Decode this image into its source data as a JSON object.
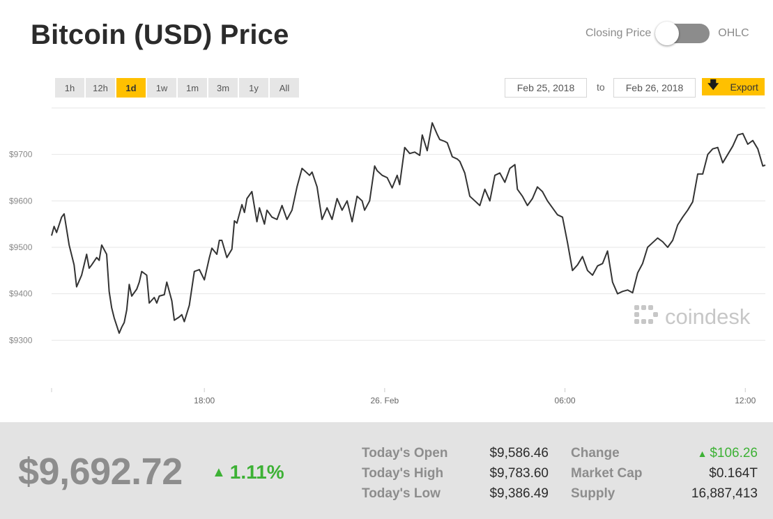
{
  "title": "Bitcoin (USD) Price",
  "toggle": {
    "left_label": "Closing Price",
    "right_label": "OHLC"
  },
  "ranges": [
    "1h",
    "12h",
    "1d",
    "1w",
    "1m",
    "3m",
    "1y",
    "All"
  ],
  "active_range": "1d",
  "date_from": "Feb 25, 2018",
  "date_to_word": "to",
  "date_to": "Feb 26, 2018",
  "export_label": "Export",
  "watermark": "coindesk",
  "colors": {
    "accent": "#ffc000",
    "positive": "#3db135",
    "line": "#333333"
  },
  "chart_data": {
    "type": "line",
    "y_tick_labels": [
      "$9300",
      "$9400",
      "$9500",
      "$9600",
      "$9700"
    ],
    "y_ticks": [
      9300,
      9400,
      9500,
      9600,
      9700
    ],
    "ylim": [
      9200,
      9800
    ],
    "x_tick_labels": [
      "18:00",
      "26. Feb",
      "06:00",
      "12:00"
    ],
    "x_ticks": [
      "2018-02-25 18:00",
      "2018-02-26 00:00",
      "2018-02-26 06:00",
      "2018-02-26 12:00"
    ],
    "xlim": [
      "2018-02-25 12:55",
      "2018-02-26 12:40"
    ],
    "grid": true,
    "series": [
      {
        "x": [
          "2018-02-25 12:55",
          "2018-02-25 13:00",
          "2018-02-25 13:05",
          "2018-02-25 13:15",
          "2018-02-25 13:20",
          "2018-02-25 13:30",
          "2018-02-25 13:40",
          "2018-02-25 13:45",
          "2018-02-25 13:55",
          "2018-02-25 14:05",
          "2018-02-25 14:10",
          "2018-02-25 14:15",
          "2018-02-25 14:25",
          "2018-02-25 14:30",
          "2018-02-25 14:35",
          "2018-02-25 14:45",
          "2018-02-25 14:50",
          "2018-02-25 14:55",
          "2018-02-25 15:00",
          "2018-02-25 15:10",
          "2018-02-25 15:15",
          "2018-02-25 15:20",
          "2018-02-25 15:25",
          "2018-02-25 15:30",
          "2018-02-25 15:35",
          "2018-02-25 15:45",
          "2018-02-25 15:50",
          "2018-02-25 15:55",
          "2018-02-25 16:05",
          "2018-02-25 16:10",
          "2018-02-25 16:20",
          "2018-02-25 16:25",
          "2018-02-25 16:30",
          "2018-02-25 16:40",
          "2018-02-25 16:45",
          "2018-02-25 16:55",
          "2018-02-25 17:00",
          "2018-02-25 17:10",
          "2018-02-25 17:15",
          "2018-02-25 17:20",
          "2018-02-25 17:30",
          "2018-02-25 17:40",
          "2018-02-25 17:50",
          "2018-02-25 18:00",
          "2018-02-25 18:10",
          "2018-02-25 18:15",
          "2018-02-25 18:25",
          "2018-02-25 18:30",
          "2018-02-25 18:35",
          "2018-02-25 18:45",
          "2018-02-25 18:55",
          "2018-02-25 19:00",
          "2018-02-25 19:05",
          "2018-02-25 19:15",
          "2018-02-25 19:20",
          "2018-02-25 19:25",
          "2018-02-25 19:35",
          "2018-02-25 19:45",
          "2018-02-25 19:50",
          "2018-02-25 20:00",
          "2018-02-25 20:05",
          "2018-02-25 20:15",
          "2018-02-25 20:25",
          "2018-02-25 20:35",
          "2018-02-25 20:45",
          "2018-02-25 20:55",
          "2018-02-25 21:05",
          "2018-02-25 21:15",
          "2018-02-25 21:25",
          "2018-02-25 21:30",
          "2018-02-25 21:35",
          "2018-02-25 21:45",
          "2018-02-25 21:55",
          "2018-02-25 22:05",
          "2018-02-25 22:15",
          "2018-02-25 22:25",
          "2018-02-25 22:35",
          "2018-02-25 22:45",
          "2018-02-25 22:55",
          "2018-02-25 23:05",
          "2018-02-25 23:15",
          "2018-02-25 23:20",
          "2018-02-25 23:30",
          "2018-02-25 23:40",
          "2018-02-25 23:45",
          "2018-02-25 23:55",
          "2018-02-26 00:05",
          "2018-02-26 00:15",
          "2018-02-26 00:25",
          "2018-02-26 00:30",
          "2018-02-26 00:40",
          "2018-02-26 00:50",
          "2018-02-26 01:00",
          "2018-02-26 01:10",
          "2018-02-26 01:15",
          "2018-02-26 01:25",
          "2018-02-26 01:35",
          "2018-02-26 01:45",
          "2018-02-26 01:50",
          "2018-02-26 02:00",
          "2018-02-26 02:05",
          "2018-02-26 02:15",
          "2018-02-26 02:25",
          "2018-02-26 02:30",
          "2018-02-26 02:40",
          "2018-02-26 02:50",
          "2018-02-26 03:00",
          "2018-02-26 03:10",
          "2018-02-26 03:20",
          "2018-02-26 03:30",
          "2018-02-26 03:40",
          "2018-02-26 03:50",
          "2018-02-26 04:00",
          "2018-02-26 04:10",
          "2018-02-26 04:20",
          "2018-02-26 04:25",
          "2018-02-26 04:35",
          "2018-02-26 04:45",
          "2018-02-26 04:55",
          "2018-02-26 05:05",
          "2018-02-26 05:15",
          "2018-02-26 05:25",
          "2018-02-26 05:35",
          "2018-02-26 05:45",
          "2018-02-26 05:55",
          "2018-02-26 06:05",
          "2018-02-26 06:15",
          "2018-02-26 06:25",
          "2018-02-26 06:35",
          "2018-02-26 06:45",
          "2018-02-26 06:55",
          "2018-02-26 07:05",
          "2018-02-26 07:15",
          "2018-02-26 07:25",
          "2018-02-26 07:35",
          "2018-02-26 07:45",
          "2018-02-26 07:55",
          "2018-02-26 08:05",
          "2018-02-26 08:15",
          "2018-02-26 08:25",
          "2018-02-26 08:35",
          "2018-02-26 08:45",
          "2018-02-26 08:55",
          "2018-02-26 09:05",
          "2018-02-26 09:15",
          "2018-02-26 09:25",
          "2018-02-26 09:35",
          "2018-02-26 09:45",
          "2018-02-26 09:55",
          "2018-02-26 10:05",
          "2018-02-26 10:15",
          "2018-02-26 10:25",
          "2018-02-26 10:35",
          "2018-02-26 10:45",
          "2018-02-26 10:55",
          "2018-02-26 11:05",
          "2018-02-26 11:15",
          "2018-02-26 11:25",
          "2018-02-26 11:35",
          "2018-02-26 11:45",
          "2018-02-26 11:55",
          "2018-02-26 12:05",
          "2018-02-26 12:15",
          "2018-02-26 12:25",
          "2018-02-26 12:35",
          "2018-02-26 12:40"
        ],
        "y": [
          9525,
          9545,
          9532,
          9565,
          9572,
          9505,
          9462,
          9415,
          9440,
          9485,
          9455,
          9462,
          9478,
          9472,
          9505,
          9485,
          9405,
          9370,
          9348,
          9315,
          9328,
          9338,
          9365,
          9420,
          9395,
          9410,
          9425,
          9448,
          9440,
          9380,
          9392,
          9380,
          9395,
          9398,
          9425,
          9385,
          9343,
          9350,
          9355,
          9340,
          9375,
          9448,
          9452,
          9430,
          9478,
          9498,
          9485,
          9515,
          9515,
          9478,
          9496,
          9557,
          9552,
          9592,
          9575,
          9605,
          9620,
          9555,
          9585,
          9550,
          9580,
          9565,
          9560,
          9590,
          9560,
          9580,
          9630,
          9670,
          9660,
          9655,
          9662,
          9630,
          9560,
          9585,
          9560,
          9605,
          9580,
          9600,
          9555,
          9610,
          9600,
          9580,
          9600,
          9675,
          9665,
          9655,
          9650,
          9628,
          9655,
          9635,
          9715,
          9702,
          9705,
          9698,
          9742,
          9708,
          9768,
          9743,
          9732,
          9728,
          9725,
          9695,
          9690,
          9685,
          9660,
          9610,
          9600,
          9590,
          9625,
          9600,
          9655,
          9660,
          9640,
          9670,
          9678,
          9625,
          9610,
          9590,
          9605,
          9630,
          9620,
          9600,
          9585,
          9570,
          9565,
          9510,
          9450,
          9462,
          9480,
          9450,
          9440,
          9460,
          9465,
          9492,
          9425,
          9400,
          9405,
          9408,
          9402,
          9445,
          9465,
          9500,
          9510,
          9520,
          9512,
          9500,
          9515,
          9548,
          9565,
          9580,
          9598,
          9658,
          9658,
          9700,
          9712,
          9715,
          9682,
          9700,
          9718,
          9742,
          9745,
          9722,
          9730,
          9712,
          9675,
          9677
        ]
      }
    ]
  },
  "footer": {
    "price": "$9,692.72",
    "change_pct": "1.11%",
    "stats_left": [
      {
        "label": "Today's Open",
        "value": "$9,586.46"
      },
      {
        "label": "Today's High",
        "value": "$9,783.60"
      },
      {
        "label": "Today's Low",
        "value": "$9,386.49"
      }
    ],
    "stats_right": [
      {
        "label": "Change",
        "value": "$106.26",
        "positive": true
      },
      {
        "label": "Market Cap",
        "value": "$0.164T"
      },
      {
        "label": "Supply",
        "value": "16,887,413"
      }
    ]
  }
}
